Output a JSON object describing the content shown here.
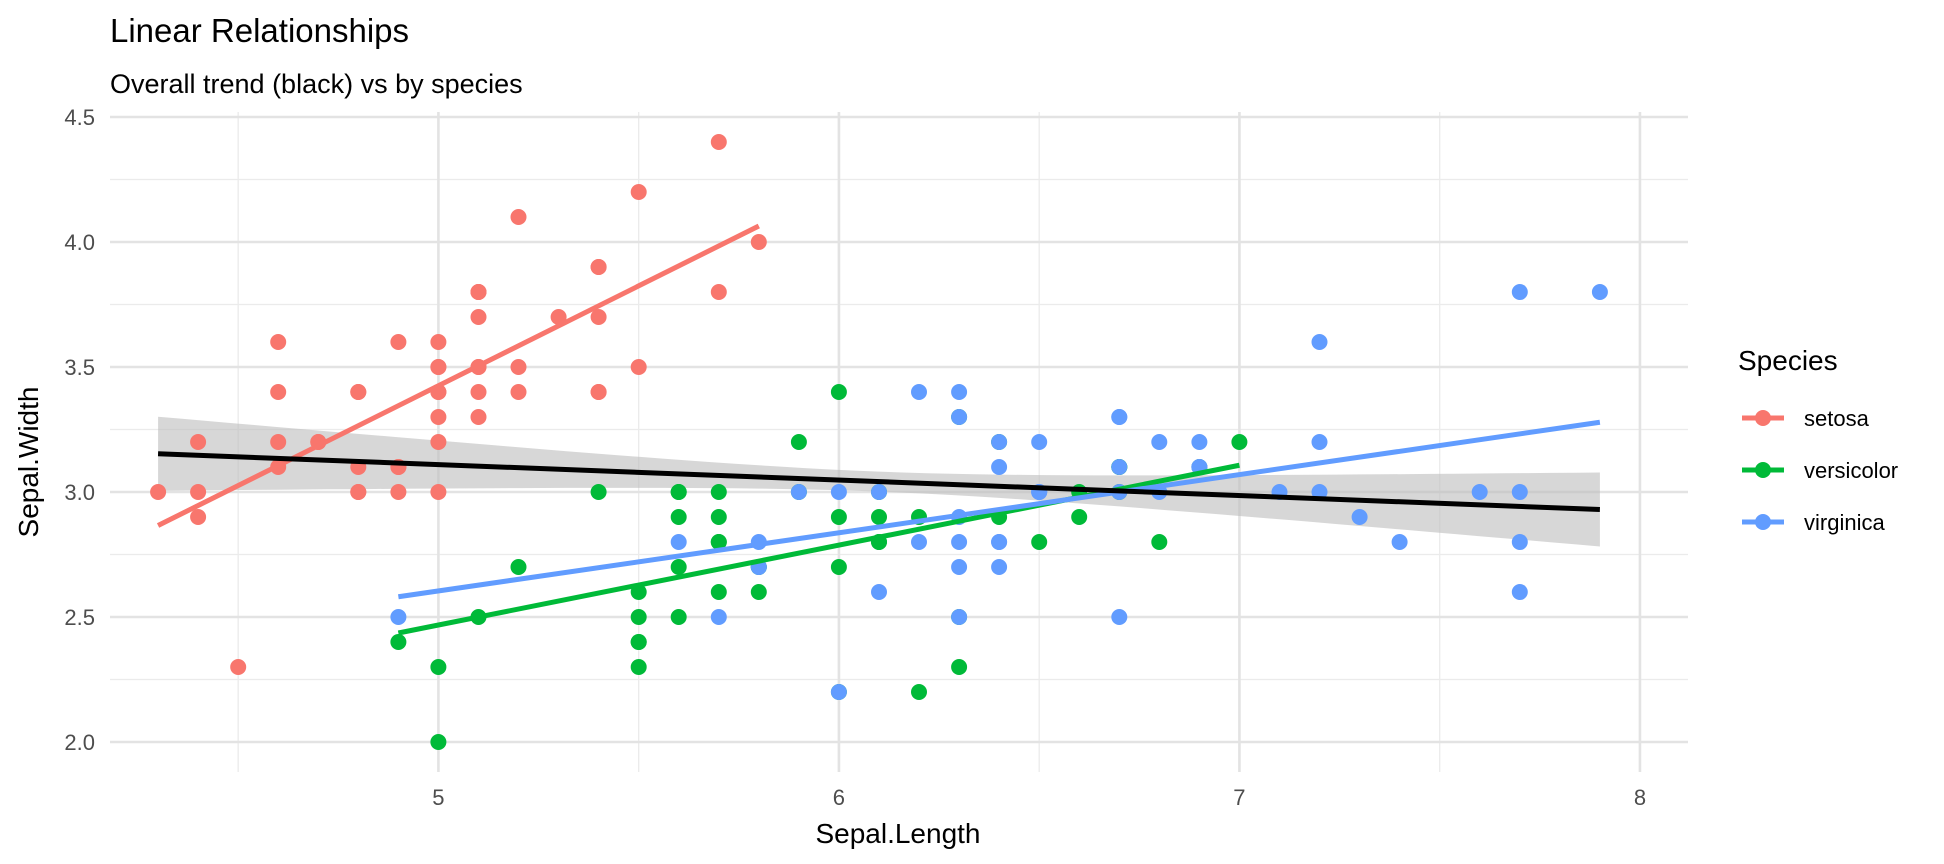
{
  "chart_data": {
    "type": "scatter",
    "title": "Linear Relationships",
    "subtitle": "Overall trend (black) vs by species",
    "xlabel": "Sepal.Length",
    "ylabel": "Sepal.Width",
    "xlim": [
      4.18,
      8.12
    ],
    "ylim": [
      1.88,
      4.52
    ],
    "xticks": [
      5,
      6,
      7,
      8
    ],
    "yticks": [
      2.0,
      2.5,
      3.0,
      3.5,
      4.0,
      4.5
    ],
    "xtick_labels": [
      "5",
      "6",
      "7",
      "8"
    ],
    "ytick_labels": [
      "2.0",
      "2.5",
      "3.0",
      "3.5",
      "4.0",
      "4.5"
    ],
    "grid": true,
    "legend": {
      "title": "Species",
      "position": "right"
    },
    "colors": {
      "setosa": "#F8766D",
      "versicolor": "#00BA38",
      "virginica": "#619CFF",
      "overall": "#000000",
      "ribbon": "#BEBEBE"
    },
    "series": [
      {
        "name": "setosa",
        "x": [
          5.1,
          4.9,
          4.7,
          4.6,
          5.0,
          5.4,
          4.6,
          5.0,
          4.4,
          4.9,
          5.4,
          4.8,
          4.8,
          4.3,
          5.8,
          5.7,
          5.4,
          5.1,
          5.7,
          5.1,
          5.4,
          5.1,
          4.6,
          5.1,
          4.8,
          5.0,
          5.0,
          5.2,
          5.2,
          4.7,
          4.8,
          5.4,
          5.2,
          5.5,
          4.9,
          5.0,
          5.5,
          4.9,
          4.4,
          5.1,
          5.0,
          4.5,
          4.4,
          5.0,
          5.1,
          4.8,
          5.1,
          4.6,
          5.3,
          5.0
        ],
        "y": [
          3.5,
          3.0,
          3.2,
          3.1,
          3.6,
          3.9,
          3.4,
          3.4,
          2.9,
          3.1,
          3.7,
          3.4,
          3.0,
          3.0,
          4.0,
          4.4,
          3.9,
          3.5,
          3.8,
          3.8,
          3.4,
          3.7,
          3.6,
          3.3,
          3.4,
          3.0,
          3.4,
          3.5,
          3.4,
          3.2,
          3.1,
          3.4,
          4.1,
          4.2,
          3.1,
          3.2,
          3.5,
          3.6,
          3.0,
          3.4,
          3.5,
          2.3,
          3.2,
          3.5,
          3.8,
          3.0,
          3.8,
          3.2,
          3.7,
          3.3
        ],
        "fit": {
          "x": [
            4.3,
            5.8
          ],
          "y": [
            2.866,
            4.064
          ]
        }
      },
      {
        "name": "versicolor",
        "x": [
          7.0,
          6.4,
          6.9,
          5.5,
          6.5,
          5.7,
          6.3,
          4.9,
          6.6,
          5.2,
          5.0,
          5.9,
          6.0,
          6.1,
          5.6,
          6.7,
          5.6,
          5.8,
          6.2,
          5.6,
          5.9,
          6.1,
          6.3,
          6.1,
          6.4,
          6.6,
          6.8,
          6.7,
          6.0,
          5.7,
          5.5,
          5.5,
          5.8,
          6.0,
          5.4,
          6.0,
          6.7,
          6.3,
          5.6,
          5.5,
          5.5,
          6.1,
          5.8,
          5.0,
          5.6,
          5.7,
          5.7,
          6.2,
          5.1,
          5.7
        ],
        "y": [
          3.2,
          3.2,
          3.1,
          2.3,
          2.8,
          2.8,
          3.3,
          2.4,
          2.9,
          2.7,
          2.0,
          3.0,
          2.2,
          2.9,
          2.9,
          3.1,
          3.0,
          2.7,
          2.2,
          2.5,
          3.2,
          2.8,
          2.5,
          2.8,
          2.9,
          3.0,
          2.8,
          3.0,
          2.9,
          2.6,
          2.4,
          2.4,
          2.7,
          2.7,
          3.0,
          3.4,
          3.1,
          2.3,
          3.0,
          2.5,
          2.6,
          3.0,
          2.6,
          2.3,
          2.7,
          3.0,
          2.9,
          2.9,
          2.5,
          2.8
        ],
        "fit": {
          "x": [
            4.9,
            7.0
          ],
          "y": [
            2.436,
            3.107
          ]
        }
      },
      {
        "name": "virginica",
        "x": [
          6.3,
          5.8,
          7.1,
          6.3,
          6.5,
          7.6,
          4.9,
          7.3,
          6.7,
          7.2,
          6.5,
          6.4,
          6.8,
          5.7,
          5.8,
          6.4,
          6.5,
          7.7,
          7.7,
          6.0,
          6.9,
          5.6,
          7.7,
          6.3,
          6.7,
          7.2,
          6.2,
          6.1,
          6.4,
          7.2,
          7.4,
          7.9,
          6.4,
          6.3,
          6.1,
          7.7,
          6.3,
          6.4,
          6.0,
          6.9,
          6.7,
          6.9,
          5.8,
          6.8,
          6.7,
          6.7,
          6.3,
          6.5,
          6.2,
          5.9
        ],
        "y": [
          3.3,
          2.7,
          3.0,
          2.9,
          3.0,
          3.0,
          2.5,
          2.9,
          2.5,
          3.6,
          3.2,
          2.7,
          3.0,
          2.5,
          2.8,
          3.2,
          3.0,
          3.8,
          2.6,
          2.2,
          3.2,
          2.8,
          2.8,
          2.7,
          3.3,
          3.2,
          2.8,
          3.0,
          2.8,
          3.0,
          2.8,
          3.8,
          2.8,
          2.8,
          2.6,
          3.0,
          3.4,
          3.1,
          3.0,
          3.1,
          3.1,
          3.1,
          2.7,
          3.2,
          3.3,
          3.0,
          2.5,
          3.0,
          3.4,
          3.0
        ],
        "fit": {
          "x": [
            4.9,
            7.9
          ],
          "y": [
            2.581,
            3.279
          ]
        }
      }
    ],
    "overall_fit": {
      "x": [
        4.3,
        7.9
      ],
      "y": [
        3.153,
        2.93
      ],
      "ci_lower": [
        3.006,
        2.748
      ],
      "ci_upper": [
        3.301,
        3.112
      ],
      "ci_at_mean": 0.04
    }
  }
}
